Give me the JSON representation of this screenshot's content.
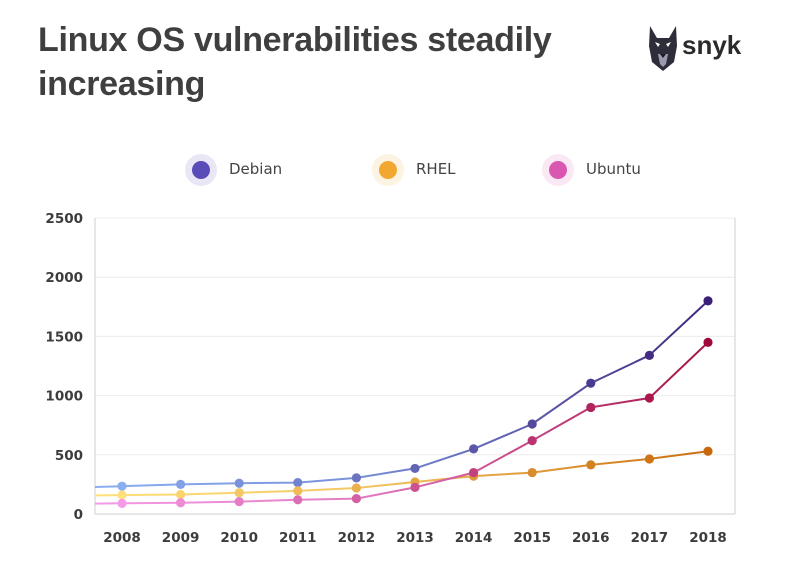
{
  "title": "Linux OS vulnerabilities steadily increasing",
  "brand": {
    "name": "snyk",
    "logo_icon": "doberman-logo-icon"
  },
  "legend": [
    {
      "label": "Debian",
      "color": "#5a4cb8"
    },
    {
      "label": "RHEL",
      "color": "#f2a830"
    },
    {
      "label": "Ubuntu",
      "color": "#d957b1"
    }
  ],
  "chart_data": {
    "type": "line",
    "title": "Linux OS vulnerabilities steadily increasing",
    "xlabel": "",
    "ylabel": "",
    "categories": [
      "2008",
      "2009",
      "2010",
      "2011",
      "2012",
      "2013",
      "2014",
      "2015",
      "2016",
      "2017",
      "2018"
    ],
    "ylim": [
      0,
      2500
    ],
    "yticks": [
      0,
      500,
      1000,
      1500,
      2000,
      2500
    ],
    "grid": true,
    "legend_position": "top-center",
    "series": [
      {
        "name": "Debian",
        "values": [
          235,
          250,
          260,
          265,
          305,
          385,
          550,
          760,
          1105,
          1340,
          1800
        ],
        "color_start": "#8aaef2",
        "color_end": "#3b1e78"
      },
      {
        "name": "RHEL",
        "values": [
          160,
          165,
          180,
          195,
          220,
          270,
          320,
          350,
          415,
          465,
          530
        ],
        "color_start": "#ffe07a",
        "color_end": "#c8680a"
      },
      {
        "name": "Ubuntu",
        "values": [
          90,
          95,
          105,
          120,
          130,
          225,
          350,
          620,
          900,
          980,
          1450
        ],
        "color_start": "#f59ae6",
        "color_end": "#a0083c"
      }
    ]
  }
}
